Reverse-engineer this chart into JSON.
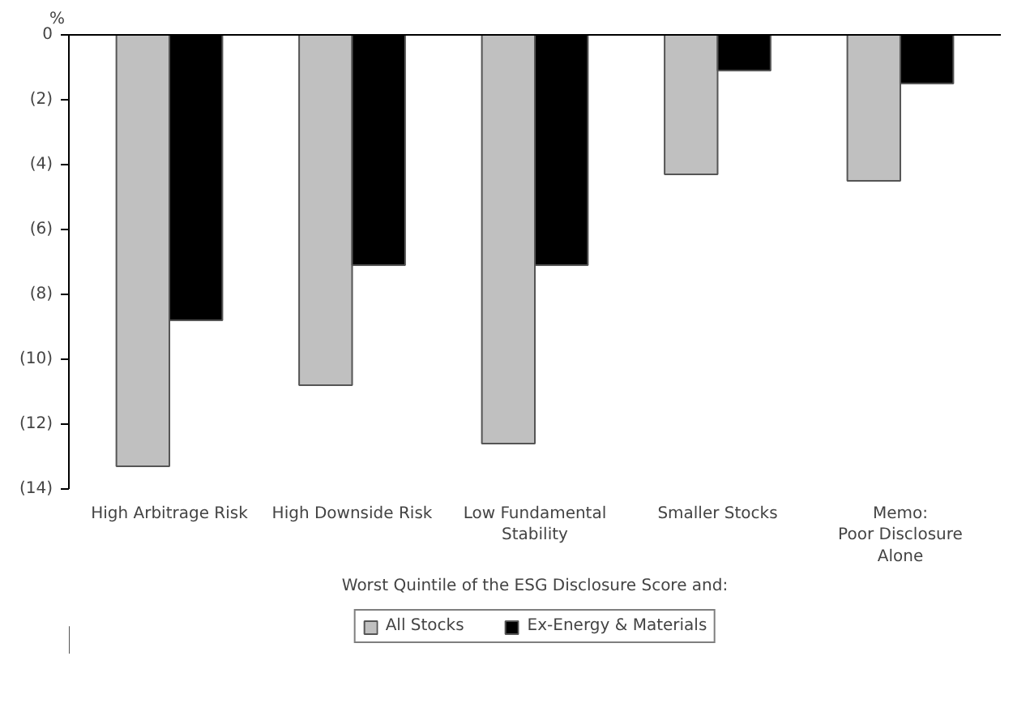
{
  "chart_data": {
    "type": "bar",
    "ylabel": "%",
    "xlabel": "Worst Quintile of the ESG Disclosure Score and:",
    "categories": [
      "High Arbitrage Risk",
      "High Downside Risk",
      "Low Fundamental\nStability",
      "Smaller Stocks",
      "Memo:\nPoor Disclosure\nAlone"
    ],
    "series": [
      {
        "name": "All Stocks",
        "color": "#c0c0c0",
        "values": [
          -13.3,
          -10.8,
          -12.6,
          -4.3,
          -4.5
        ]
      },
      {
        "name": "Ex-Energy & Materials",
        "color": "#000000",
        "values": [
          -8.8,
          -7.1,
          -7.1,
          -1.1,
          -1.5
        ]
      }
    ],
    "ylim": [
      -14,
      0
    ],
    "yticks": [
      {
        "value": -14,
        "label": "(14)"
      },
      {
        "value": -12,
        "label": "(12)"
      },
      {
        "value": -10,
        "label": "(10)"
      },
      {
        "value": -8,
        "label": "(8)"
      },
      {
        "value": -6,
        "label": "(6)"
      },
      {
        "value": -4,
        "label": "(4)"
      },
      {
        "value": -2,
        "label": "(2)"
      },
      0
    ],
    "grid": false,
    "legend": "bottom"
  }
}
